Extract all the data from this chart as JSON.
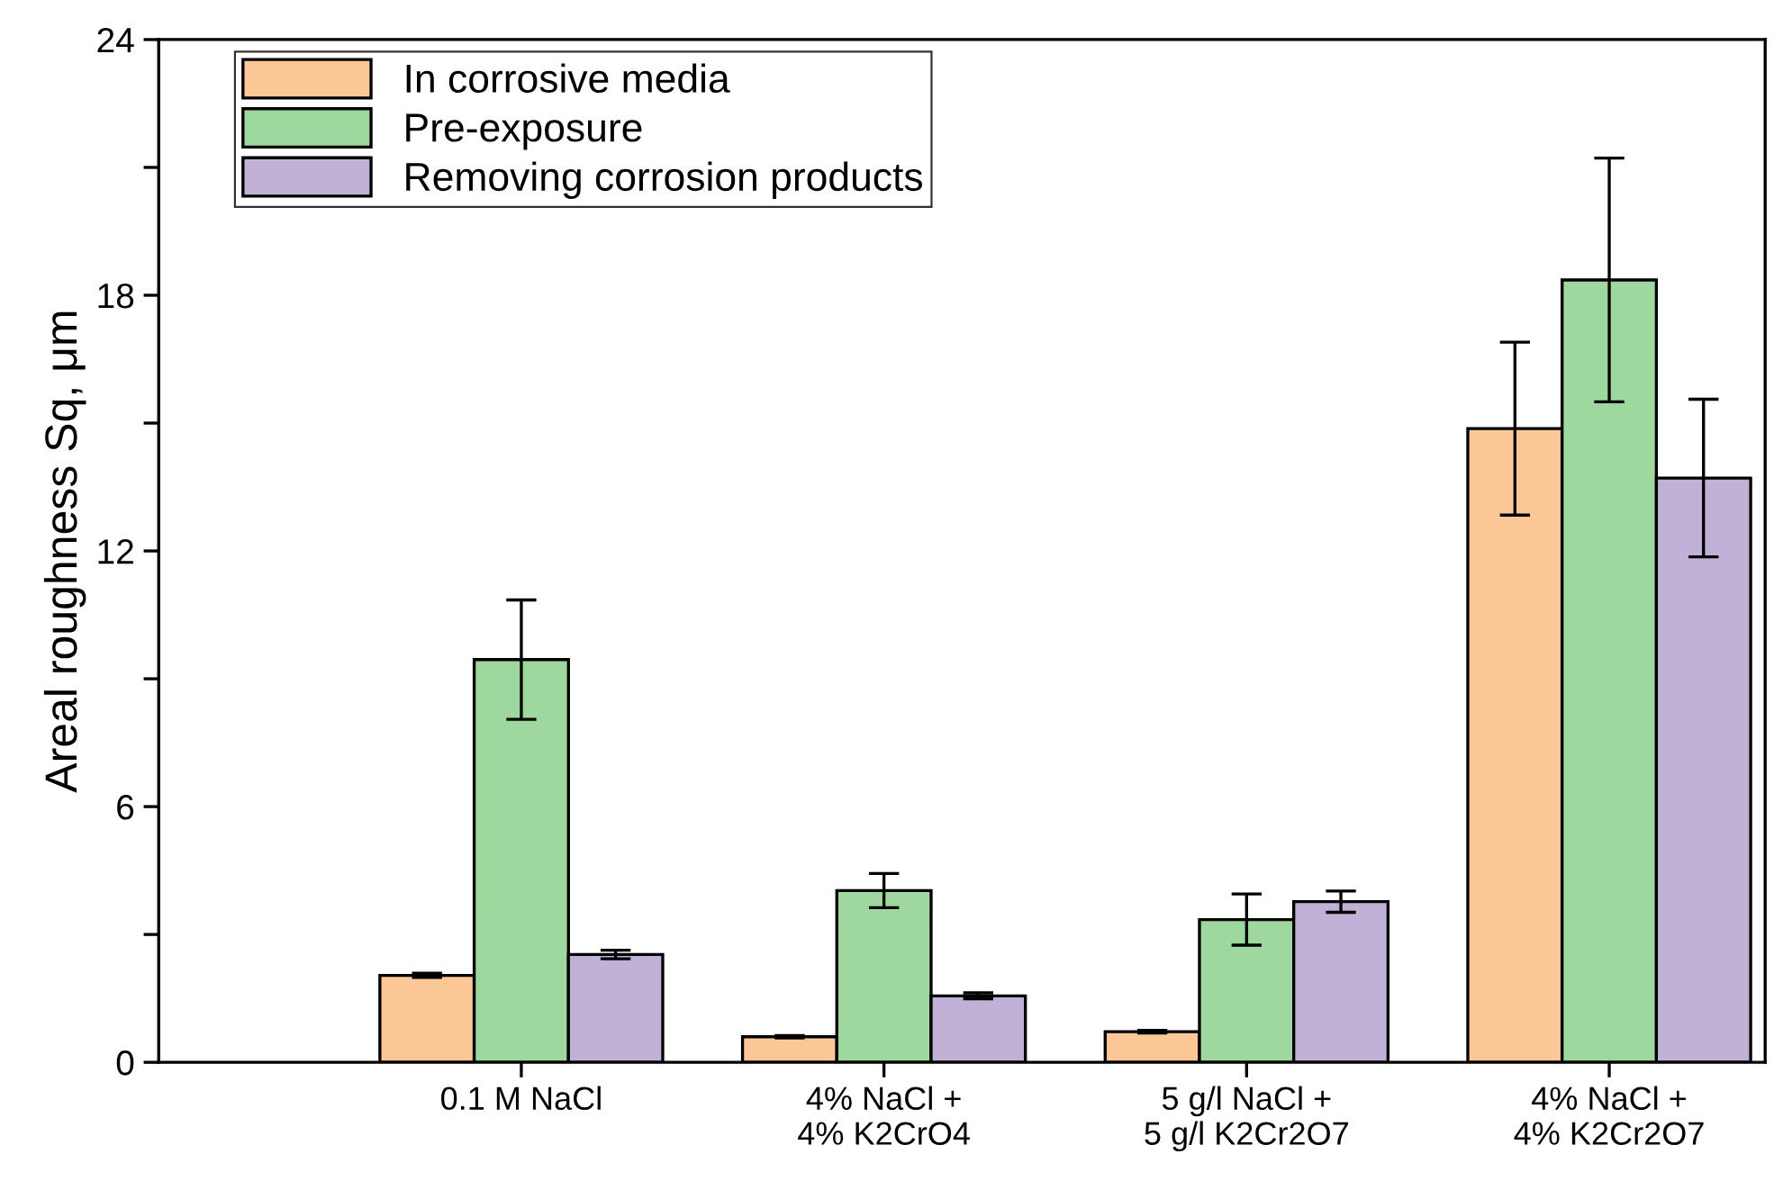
{
  "chart_data": {
    "type": "bar",
    "ylabel": "Areal roughness Sq, μm",
    "categories": [
      "0.1 M NaCl",
      "4% NaCl +\n4% K2CrO4",
      "5 g/l NaCl +\n5 g/l K2Cr2O7",
      "4% NaCl +\n4% K2Cr2O7"
    ],
    "series": [
      {
        "name": "In corrosive media",
        "color": "#fbc797",
        "values": [
          2.04,
          0.6,
          0.72,
          14.87
        ],
        "errors": [
          0.05,
          0.03,
          0.03,
          2.03
        ]
      },
      {
        "name": "Pre-exposure",
        "color": "#9fd89f",
        "values": [
          9.45,
          4.03,
          3.35,
          18.36
        ],
        "errors": [
          1.4,
          0.4,
          0.6,
          2.86
        ]
      },
      {
        "name": "Removing corrosion products",
        "color": "#c1b1d6",
        "values": [
          2.53,
          1.56,
          3.77,
          13.71
        ],
        "errors": [
          0.1,
          0.07,
          0.25,
          1.85
        ]
      }
    ],
    "ylim": [
      0,
      24
    ],
    "yticks": [
      0,
      {
        "value": 3,
        "label": null
      },
      6,
      {
        "value": 9,
        "label": null
      },
      12,
      {
        "value": 15,
        "label": null
      },
      18,
      {
        "value": 21,
        "label": null
      },
      24
    ],
    "legend": "top left",
    "grid": false
  }
}
